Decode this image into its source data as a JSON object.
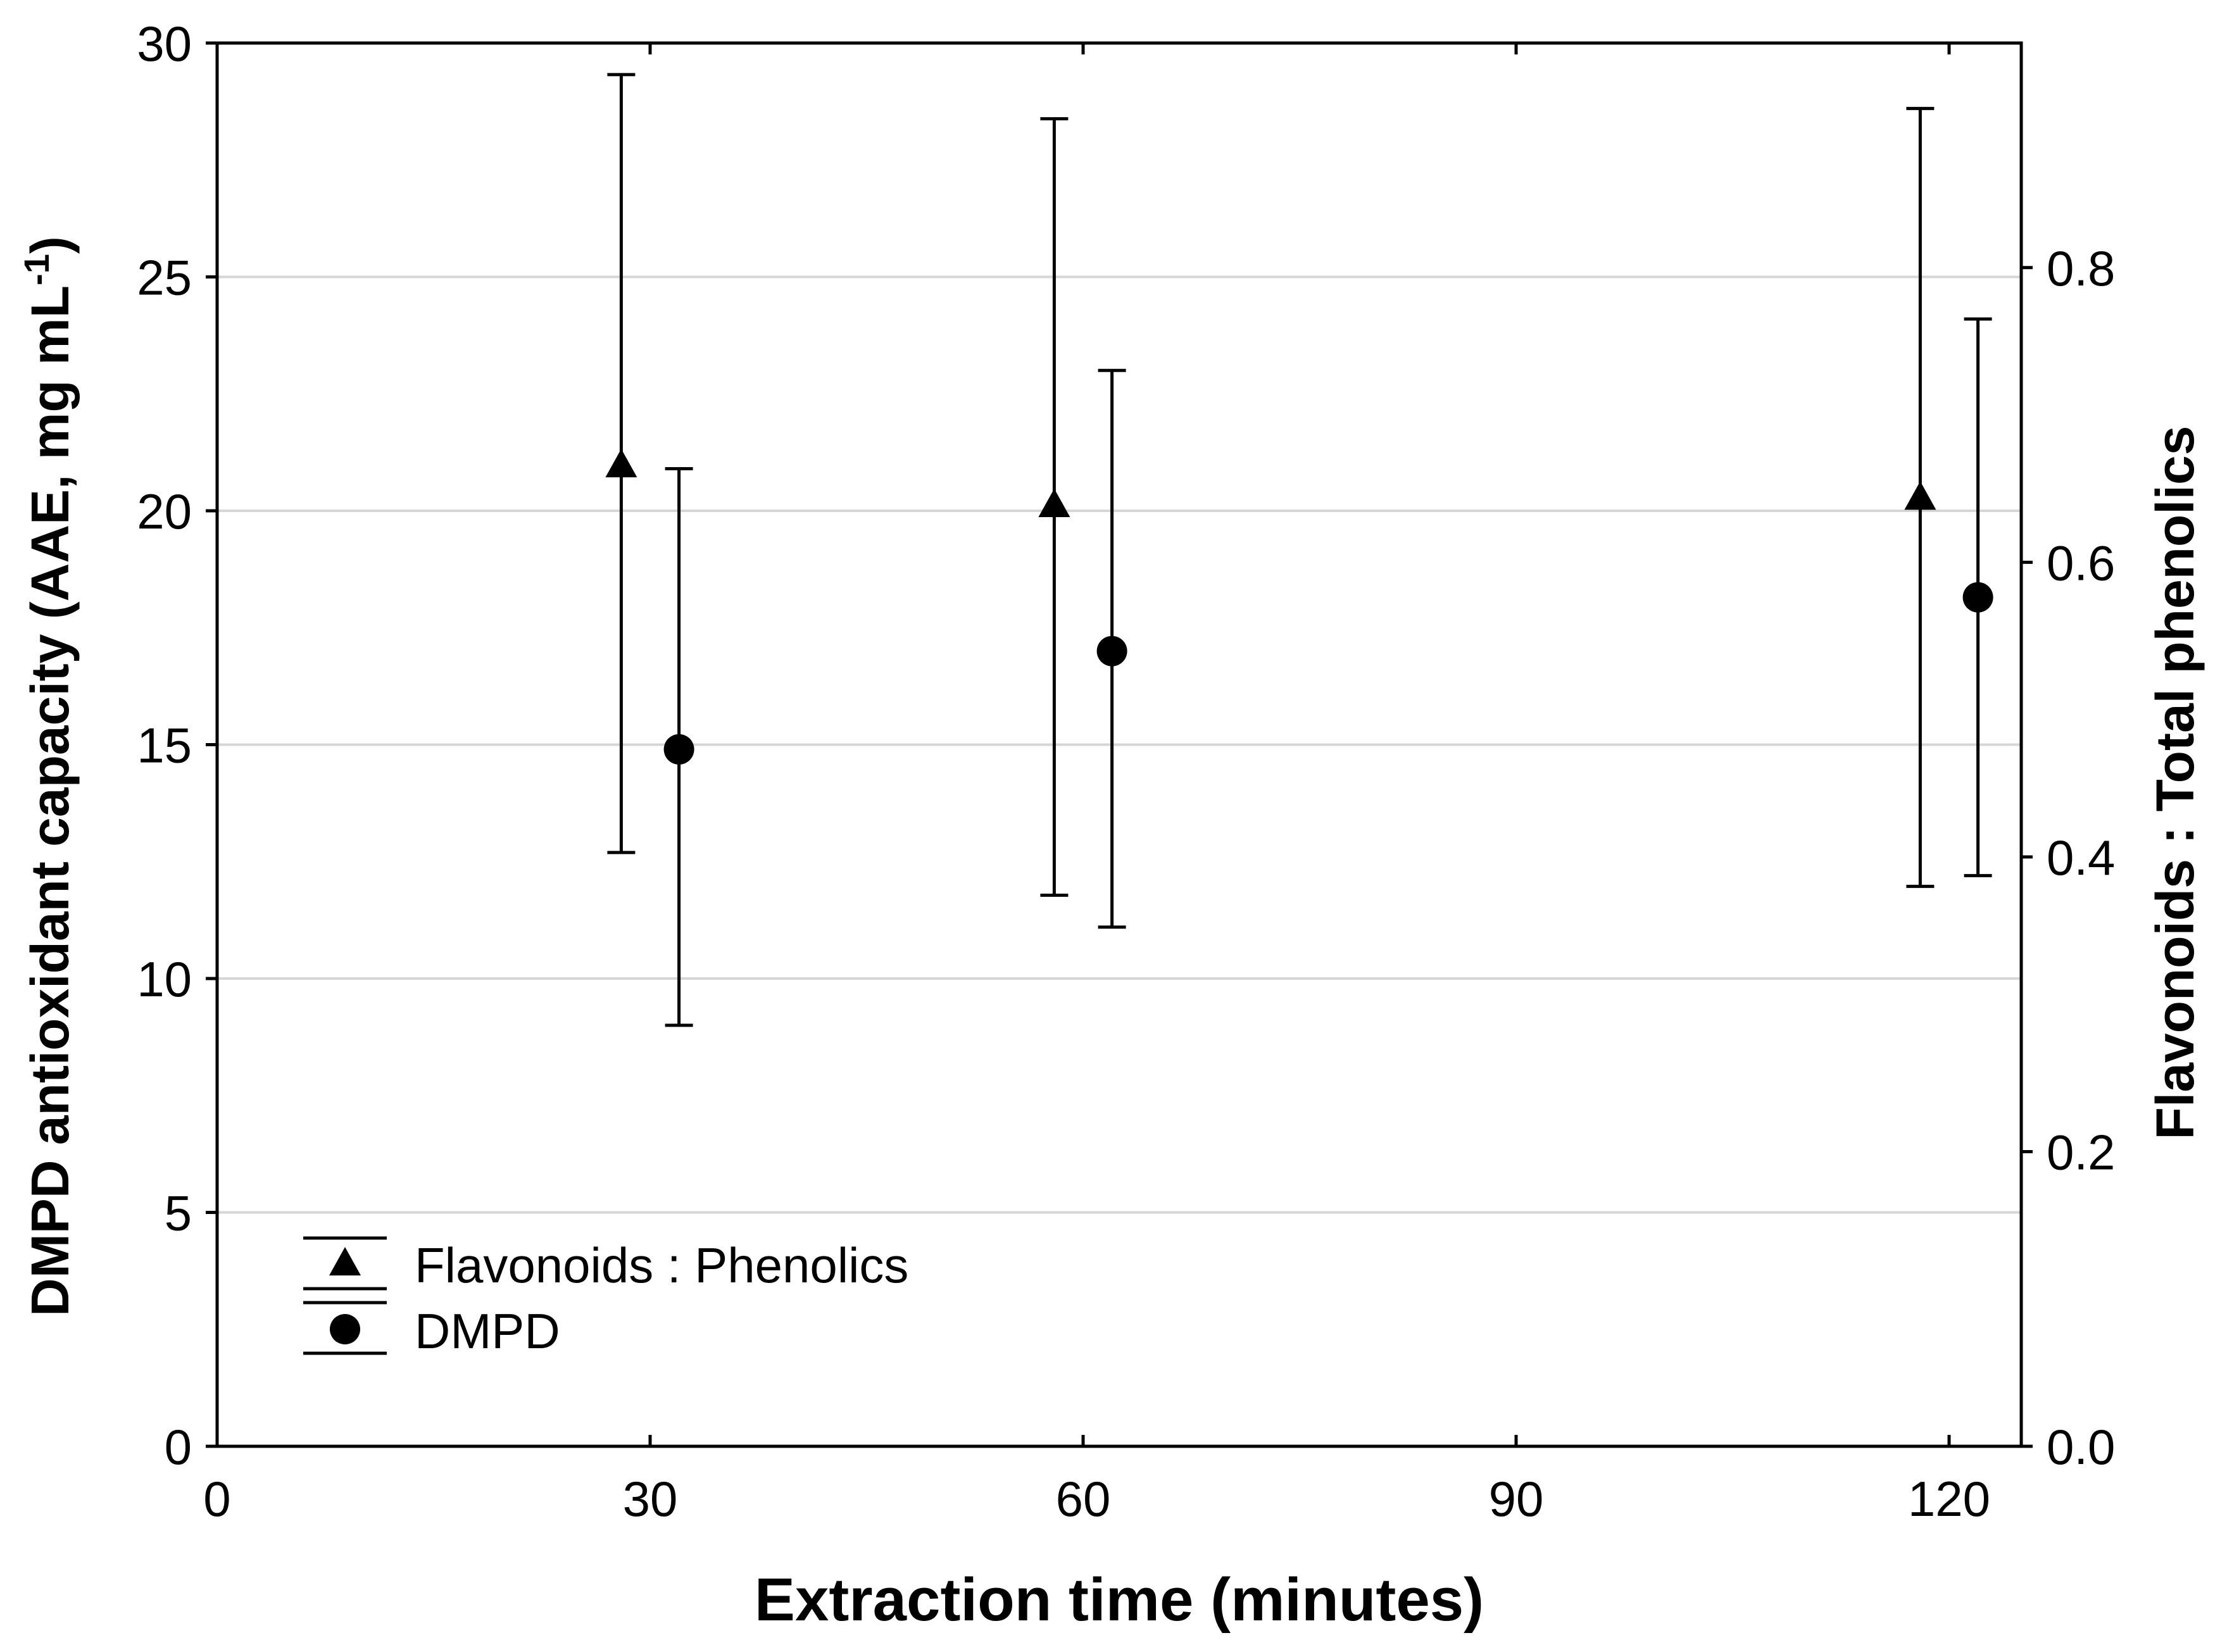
{
  "chart_data": {
    "type": "scatter",
    "title": "",
    "xlabel": "Extraction time (minutes)",
    "ylabel": "DMPD antioxidant capacity (AAE, mg mL",
    "ylabel_sup": "-1",
    "ylabel_close": ")",
    "y2label": "Flavonoids : Total phenolics",
    "xlim": [
      0,
      125
    ],
    "ylim": [
      0,
      30
    ],
    "y2lim": [
      0,
      0.9524
    ],
    "x_ticks": [
      0,
      30,
      60,
      90,
      120
    ],
    "x_tick_labels": [
      "0",
      "30",
      "60",
      "90",
      "120"
    ],
    "y_ticks": [
      0,
      5,
      10,
      15,
      20,
      25,
      30
    ],
    "y_tick_labels": [
      "0",
      "5",
      "10",
      "15",
      "20",
      "25",
      "30"
    ],
    "y2_ticks": [
      0.0,
      0.2,
      0.4,
      0.6,
      0.8
    ],
    "y2_tick_labels": [
      "0.0",
      "0.2",
      "0.4",
      "0.6",
      "0.8"
    ],
    "grid": "horizontal",
    "legend_position": "bottom-left",
    "series": [
      {
        "name": "Flavonoids : Phenolics",
        "marker": "triangle",
        "axis": "right",
        "points": [
          {
            "x": 28,
            "y": 0.665,
            "low": 0.403,
            "high": 0.931
          },
          {
            "x": 58,
            "y": 0.638,
            "low": 0.374,
            "high": 0.901
          },
          {
            "x": 118,
            "y": 0.643,
            "low": 0.38,
            "high": 0.908
          }
        ]
      },
      {
        "name": "DMPD",
        "marker": "circle",
        "axis": "left",
        "points": [
          {
            "x": 32,
            "y": 14.9,
            "low": 9.0,
            "high": 20.9
          },
          {
            "x": 62,
            "y": 17.0,
            "low": 11.1,
            "high": 23.0
          },
          {
            "x": 122,
            "y": 18.15,
            "low": 12.2,
            "high": 24.1
          }
        ]
      }
    ]
  }
}
